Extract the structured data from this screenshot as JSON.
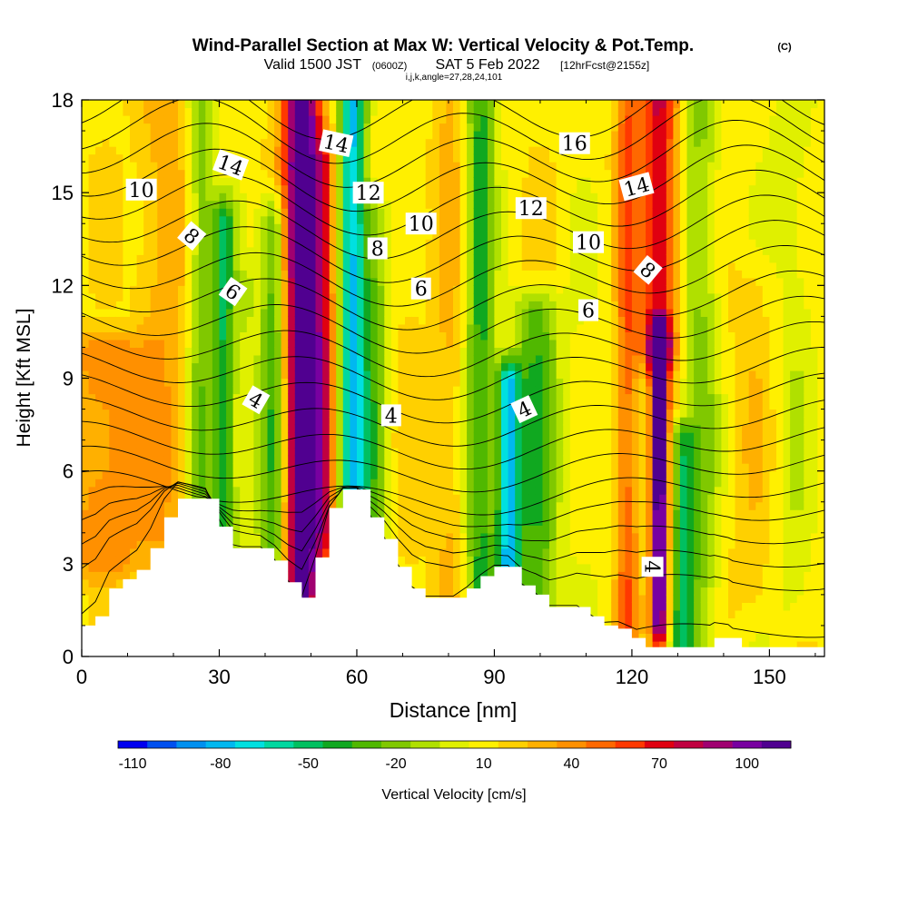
{
  "chart_data": {
    "type": "heatmap",
    "title": "Wind-Parallel Section at Max W: Vertical Velocity & Pot.Temp.",
    "title_mark": "(C)",
    "subtitle": {
      "valid": "Valid 1500 JST",
      "utc": "(0600Z)",
      "date": "SAT 5 Feb 2022",
      "forecast": "[12hrFcst@2155z]"
    },
    "subtitle2": "i,j,k,angle=27,28,24,101",
    "xlabel": "Distance [nm]",
    "ylabel": "Height [Kft MSL]",
    "xlim": [
      0,
      162
    ],
    "ylim": [
      0,
      18
    ],
    "xticks": [
      0,
      30,
      60,
      90,
      120,
      150
    ],
    "yticks": [
      0,
      3,
      6,
      9,
      12,
      15,
      18
    ],
    "colorbar": {
      "label": "Vertical Velocity [cm/s]",
      "ticks": [
        -110,
        -80,
        -50,
        -20,
        10,
        40,
        70,
        100
      ],
      "min": -115,
      "max": 115,
      "colors": [
        "#0000f0",
        "#0050f0",
        "#0090f0",
        "#00b8f0",
        "#00e0e0",
        "#00d8a0",
        "#00c060",
        "#10a820",
        "#50b800",
        "#80c800",
        "#b0e000",
        "#e0f000",
        "#fff000",
        "#ffd000",
        "#ffb000",
        "#ff9000",
        "#ff6800",
        "#ff3800",
        "#e00010",
        "#c00040",
        "#a00070",
        "#7800a0",
        "#500090"
      ]
    },
    "velocity_features": [
      {
        "x": 5,
        "w": 9,
        "bottom": 3,
        "top": 10,
        "value": 30
      },
      {
        "x": 18,
        "w": 6,
        "bottom": 4,
        "top": 18,
        "value": 20
      },
      {
        "x": 26,
        "w": 3,
        "bottom": 4,
        "top": 18,
        "value": -35
      },
      {
        "x": 31,
        "w": 2.5,
        "bottom": 4,
        "top": 14,
        "value": -55
      },
      {
        "x": 36,
        "w": 2.5,
        "bottom": 3,
        "top": 12,
        "value": -15
      },
      {
        "x": 42,
        "w": 3,
        "bottom": 2,
        "top": 14,
        "value": -50
      },
      {
        "x": 48,
        "w": 4,
        "bottom": 2,
        "top": 18,
        "value": 110
      },
      {
        "x": 53,
        "w": 3,
        "bottom": 4,
        "top": 16,
        "value": 45
      },
      {
        "x": 59,
        "w": 3,
        "bottom": 4,
        "top": 18,
        "value": -90
      },
      {
        "x": 64,
        "w": 3,
        "bottom": 2,
        "top": 14,
        "value": -35
      },
      {
        "x": 71,
        "w": 5,
        "bottom": 2,
        "top": 16,
        "value": 5
      },
      {
        "x": 80,
        "w": 3,
        "bottom": 2,
        "top": 18,
        "value": 15
      },
      {
        "x": 87,
        "w": 3,
        "bottom": 2,
        "top": 18,
        "value": -50
      },
      {
        "x": 93,
        "w": 2.5,
        "bottom": 2,
        "top": 9,
        "value": -85
      },
      {
        "x": 99,
        "w": 5,
        "bottom": 1,
        "top": 11,
        "value": -45
      },
      {
        "x": 110,
        "w": 5,
        "bottom": 1,
        "top": 14,
        "value": -5
      },
      {
        "x": 119,
        "w": 2.5,
        "bottom": 1,
        "top": 18,
        "value": 40
      },
      {
        "x": 126,
        "w": 2,
        "bottom": 1,
        "top": 10,
        "value": 105
      },
      {
        "x": 126,
        "w": 4,
        "bottom": 10,
        "top": 18,
        "value": 65
      },
      {
        "x": 131,
        "w": 2.5,
        "bottom": 0,
        "top": 7,
        "value": -50
      },
      {
        "x": 135,
        "w": 4,
        "bottom": 0,
        "top": 18,
        "value": -30
      },
      {
        "x": 147,
        "w": 6,
        "bottom": 2,
        "top": 12,
        "value": 10
      },
      {
        "x": 155,
        "w": 5,
        "bottom": 2,
        "top": 18,
        "value": -15
      }
    ],
    "terrain": [
      [
        0,
        1.0
      ],
      [
        3,
        1.3
      ],
      [
        6,
        2.2
      ],
      [
        9,
        2.5
      ],
      [
        12,
        2.8
      ],
      [
        15,
        3.5
      ],
      [
        18,
        4.5
      ],
      [
        21,
        5.1
      ],
      [
        24,
        5.1
      ],
      [
        27,
        5.1
      ],
      [
        30,
        4.2
      ],
      [
        33,
        3.5
      ],
      [
        36,
        3.5
      ],
      [
        39,
        3.5
      ],
      [
        42,
        3.1
      ],
      [
        45,
        2.4
      ],
      [
        48,
        1.9
      ],
      [
        51,
        3.2
      ],
      [
        54,
        4.8
      ],
      [
        57,
        5.4
      ],
      [
        60,
        5.4
      ],
      [
        63,
        4.5
      ],
      [
        66,
        3.8
      ],
      [
        69,
        2.9
      ],
      [
        72,
        2.2
      ],
      [
        75,
        1.9
      ],
      [
        78,
        1.9
      ],
      [
        81,
        1.9
      ],
      [
        84,
        2.2
      ],
      [
        87,
        2.6
      ],
      [
        90,
        2.9
      ],
      [
        93,
        2.9
      ],
      [
        96,
        2.3
      ],
      [
        99,
        2.0
      ],
      [
        102,
        1.6
      ],
      [
        105,
        1.6
      ],
      [
        108,
        1.6
      ],
      [
        111,
        1.3
      ],
      [
        114,
        1.0
      ],
      [
        117,
        0.9
      ],
      [
        120,
        0.6
      ],
      [
        123,
        0.3
      ],
      [
        126,
        0.3
      ],
      [
        129,
        0.3
      ],
      [
        132,
        0.3
      ],
      [
        135,
        0.3
      ],
      [
        138,
        0.6
      ],
      [
        141,
        0.6
      ],
      [
        144,
        0.3
      ],
      [
        147,
        0.3
      ],
      [
        150,
        0.3
      ],
      [
        153,
        0.3
      ],
      [
        156,
        0.3
      ],
      [
        159,
        0.3
      ],
      [
        162,
        0.3
      ]
    ],
    "theta_levels": [
      0,
      2,
      3,
      4,
      5,
      6,
      7,
      8,
      9,
      10,
      11,
      12,
      13,
      14,
      15,
      16,
      17,
      18,
      19,
      20,
      21,
      22
    ],
    "contour_labels": [
      {
        "text": "10",
        "x": 13,
        "y": 15.1,
        "angle": 0
      },
      {
        "text": "14",
        "x": 32.5,
        "y": 15.9,
        "angle": 20
      },
      {
        "text": "8",
        "x": 24,
        "y": 13.6,
        "angle": 40
      },
      {
        "text": "6",
        "x": 33,
        "y": 11.8,
        "angle": 35
      },
      {
        "text": "4",
        "x": 38,
        "y": 8.3,
        "angle": 30
      },
      {
        "text": "14",
        "x": 55.5,
        "y": 16.6,
        "angle": 12
      },
      {
        "text": "12",
        "x": 62.5,
        "y": 15.0,
        "angle": 0
      },
      {
        "text": "8",
        "x": 64.5,
        "y": 13.2,
        "angle": 0
      },
      {
        "text": "10",
        "x": 74,
        "y": 14.0,
        "angle": 0
      },
      {
        "text": "6",
        "x": 74,
        "y": 11.9,
        "angle": 0
      },
      {
        "text": "4",
        "x": 67.5,
        "y": 7.8,
        "angle": 0
      },
      {
        "text": "12",
        "x": 98,
        "y": 14.5,
        "angle": 0
      },
      {
        "text": "4",
        "x": 96.5,
        "y": 8.0,
        "angle": -25
      },
      {
        "text": "16",
        "x": 107.5,
        "y": 16.6,
        "angle": 0
      },
      {
        "text": "10",
        "x": 110.5,
        "y": 13.4,
        "angle": 0
      },
      {
        "text": "6",
        "x": 110.5,
        "y": 11.2,
        "angle": 0
      },
      {
        "text": "14",
        "x": 121,
        "y": 15.2,
        "angle": -15
      },
      {
        "text": "8",
        "x": 123.5,
        "y": 12.5,
        "angle": 40
      },
      {
        "text": "4",
        "x": 124.5,
        "y": 2.9,
        "angle": 90
      }
    ]
  }
}
